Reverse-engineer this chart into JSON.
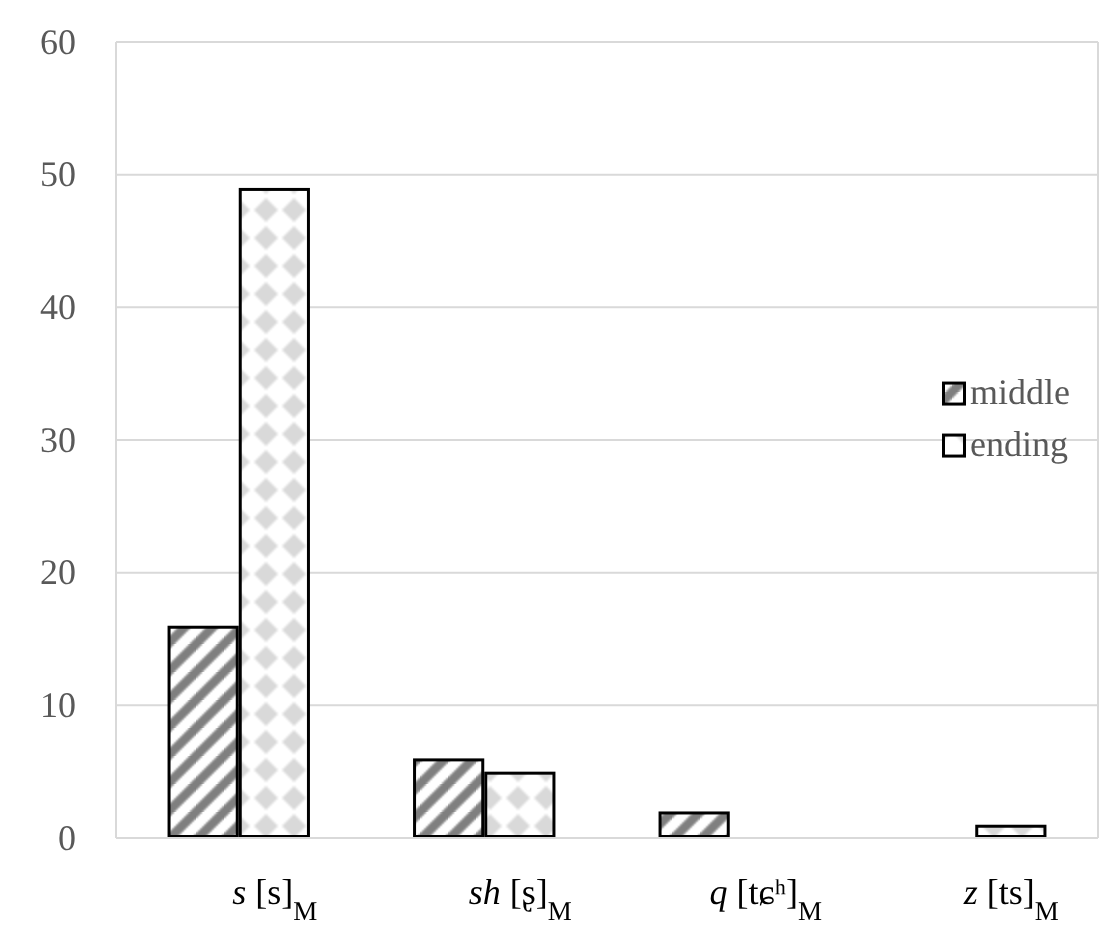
{
  "chart_data": {
    "type": "bar",
    "categories": [
      "s [s]$_{M}$",
      "sh [ʂ]$_{M}$",
      "q [tɕʰ]$_{M}$",
      "z [ts]$_{M}$"
    ],
    "series": [
      {
        "name": "middle",
        "color": "#7f7f7f",
        "values": [
          16,
          6,
          2,
          0
        ]
      },
      {
        "name": "ending",
        "color": "#d9d9d9",
        "values": [
          49,
          5,
          0,
          1
        ]
      }
    ],
    "ylim": [
      0,
      60
    ],
    "yticks": [
      0,
      10,
      20,
      30,
      40,
      50,
      60
    ],
    "grid": "y",
    "legend": "right"
  }
}
